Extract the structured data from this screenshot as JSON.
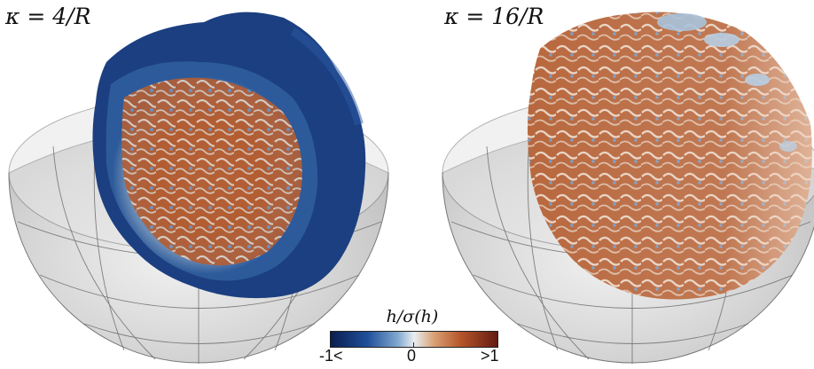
{
  "panels": [
    {
      "label": "κ = 4/R"
    },
    {
      "label": "κ = 16/R"
    }
  ],
  "colorbar": {
    "title": "h/σ(h)",
    "tick_min": "-1<",
    "tick_mid": "0",
    "tick_max": ">1",
    "colors": [
      "#0b1d50",
      "#1f4f9a",
      "#7fa7cf",
      "#e8edf1",
      "#d9a074",
      "#b5552a",
      "#641b12"
    ]
  }
}
